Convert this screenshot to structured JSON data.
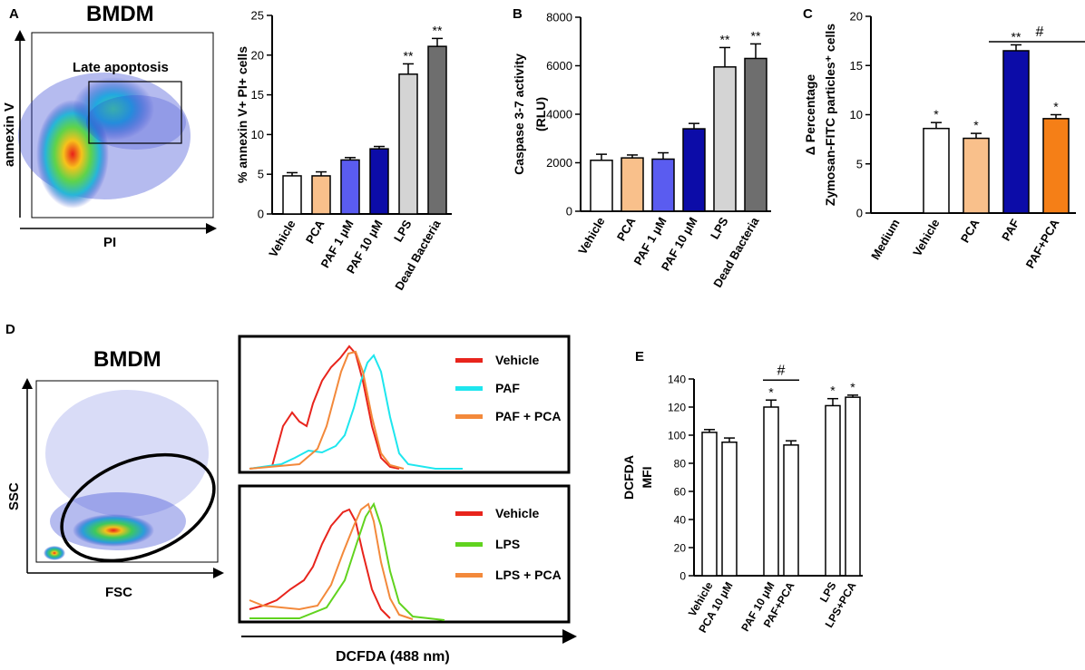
{
  "colors": {
    "white": "#ffffff",
    "peach": "#f9c08b",
    "lightblue": "#5a5cf0",
    "darkblue": "#0c0ca8",
    "lightgray": "#d4d4d4",
    "darkgray": "#6e6e6e",
    "orange": "#f57f17",
    "red": "#e8241c",
    "cyan": "#1ee6ee",
    "green": "#61d31f",
    "historange": "#f3893b"
  },
  "panels": {
    "A": {
      "letter": "A",
      "cell_title": "BMDM",
      "gate_label": "Late apoptosis",
      "flow_ylabel": "annexin V",
      "flow_xlabel": "PI"
    },
    "D": {
      "letter": "D",
      "cell_title": "BMDM",
      "flow_ylabel": "SSC",
      "flow_xlabel": "FSC",
      "hist_xlabel": "DCFDA (488 nm)",
      "top_legend": [
        "Vehicle",
        "PAF",
        "PAF + PCA"
      ],
      "bottom_legend": [
        "Vehicle",
        "LPS",
        "LPS + PCA"
      ]
    }
  },
  "chart_data": [
    {
      "id": "A",
      "type": "bar",
      "ylabel": "% annexin  V+ PI+ cells",
      "ylim": [
        0,
        25
      ],
      "yticks": [
        0,
        5,
        10,
        15,
        20,
        25
      ],
      "categories": [
        "Vehicle",
        "PCA",
        "PAF 1 μM",
        "PAF 10 μM",
        "LPS",
        "Dead Bacteria"
      ],
      "values": [
        4.8,
        4.8,
        6.8,
        8.2,
        17.6,
        21.1
      ],
      "errors": [
        0.4,
        0.5,
        0.3,
        0.3,
        1.3,
        1.0
      ],
      "annotations": [
        "",
        "",
        "",
        "",
        "**",
        "**"
      ],
      "fills": [
        "white",
        "peach",
        "lightblue",
        "darkblue",
        "lightgray",
        "darkgray"
      ]
    },
    {
      "id": "B",
      "letter": "B",
      "type": "bar",
      "ylabel": "Caspase 3-7 activity",
      "ylabel2": "(RLU)",
      "ylim": [
        0,
        8000
      ],
      "yticks": [
        0,
        2000,
        4000,
        6000,
        8000
      ],
      "categories": [
        "Vehicle",
        "PCA",
        "PAF 1 μM",
        "PAF 10 μM",
        "LPS",
        "Dead Bacteria"
      ],
      "values": [
        2100,
        2200,
        2150,
        3400,
        5950,
        6300
      ],
      "errors": [
        250,
        120,
        260,
        220,
        800,
        600
      ],
      "annotations": [
        "",
        "",
        "",
        "",
        "**",
        "**"
      ],
      "fills": [
        "white",
        "peach",
        "lightblue",
        "darkblue",
        "lightgray",
        "darkgray"
      ]
    },
    {
      "id": "C",
      "letter": "C",
      "type": "bar",
      "ylabel": "Δ Percentage",
      "ylabel2": "Zymosan-FITC particles⁺ cells",
      "ylim": [
        0,
        20
      ],
      "yticks": [
        0,
        5,
        10,
        15,
        20
      ],
      "categories": [
        "Medium",
        "Vehicle",
        "PCA",
        "PAF",
        "PAF+PCA"
      ],
      "values": [
        0,
        8.6,
        7.6,
        16.5,
        9.6
      ],
      "errors": [
        0,
        0.6,
        0.5,
        0.6,
        0.4
      ],
      "annotations": [
        "",
        "*",
        "*",
        "**",
        "*"
      ],
      "fills": [
        "white",
        "white",
        "peach",
        "darkblue",
        "orange"
      ],
      "bracket": {
        "label": "#",
        "from": 3,
        "to": 4
      }
    },
    {
      "id": "E",
      "letter": "E",
      "type": "bar",
      "ylabel": "DCFDA",
      "ylabel2": "MFI",
      "ylim": [
        0,
        140
      ],
      "yticks": [
        0,
        20,
        40,
        60,
        80,
        100,
        120,
        140
      ],
      "categories": [
        "Vehicle",
        "PCA 10 μM",
        "PAF 10 μM",
        "PAF+PCA",
        "LPS",
        "LPS+PCA"
      ],
      "values": [
        102,
        95,
        120,
        93,
        121,
        127
      ],
      "errors": [
        2,
        3,
        5,
        3,
        5,
        1.5
      ],
      "annotations": [
        "",
        "",
        "*",
        "",
        "*",
        "*"
      ],
      "fills": [
        "white",
        "white",
        "white",
        "white",
        "white",
        "white"
      ],
      "groups": [
        0,
        0,
        1,
        1,
        2,
        2
      ],
      "bracket": {
        "label": "#",
        "from": 2,
        "to": 3
      }
    }
  ]
}
